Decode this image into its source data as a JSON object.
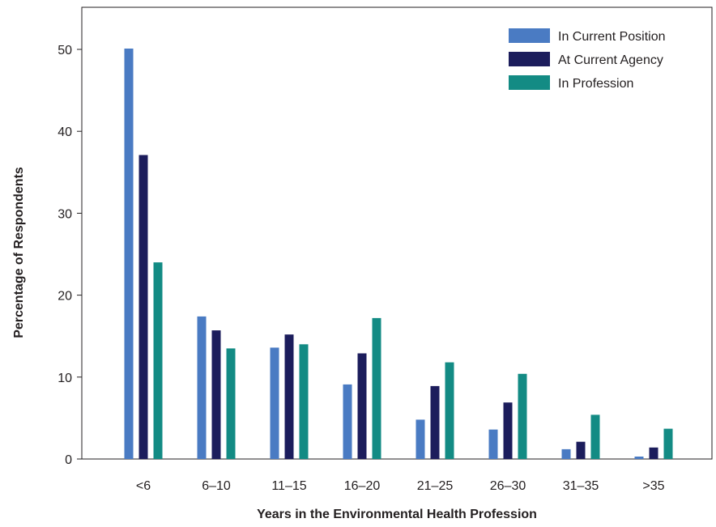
{
  "chart_data": {
    "type": "bar",
    "title": "",
    "xlabel": "Years in the Environmental Health Profession",
    "ylabel": "Percentage of Respondents",
    "categories": [
      "<6",
      "6–10",
      "11–15",
      "16–20",
      "21–25",
      "26–30",
      "31–35",
      ">35"
    ],
    "ylim": [
      0,
      55
    ],
    "yticks": [
      0,
      10,
      20,
      30,
      40,
      50
    ],
    "legend_position": "top-right",
    "grid": false,
    "series": [
      {
        "name": "In Current Position",
        "color": "#4a7bc3",
        "values": [
          50.1,
          17.4,
          13.6,
          9.1,
          4.8,
          3.6,
          1.2,
          0.3
        ]
      },
      {
        "name": "At Current Agency",
        "color": "#1c1d5c",
        "values": [
          37.1,
          15.7,
          15.2,
          12.9,
          8.9,
          6.9,
          2.1,
          1.4
        ]
      },
      {
        "name": "In Profession",
        "color": "#138b84",
        "values": [
          24.0,
          13.5,
          14.0,
          17.2,
          11.8,
          10.4,
          5.4,
          3.7
        ]
      }
    ]
  }
}
